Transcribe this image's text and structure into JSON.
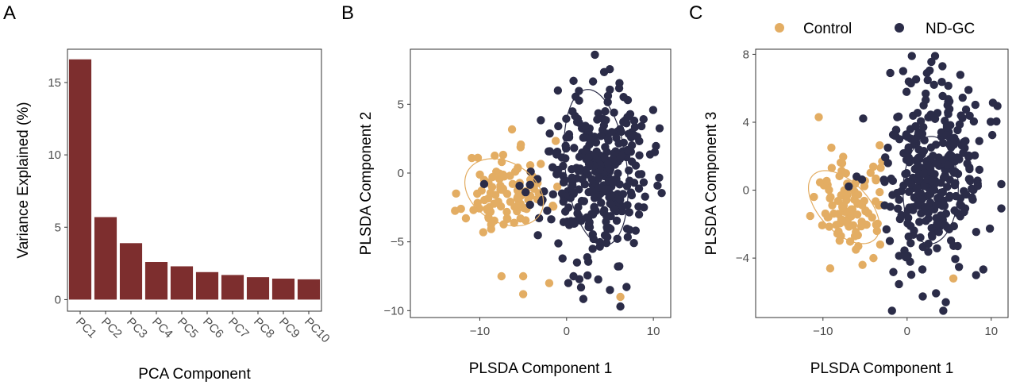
{
  "panel_labels": [
    "A",
    "B",
    "C"
  ],
  "legend": {
    "items": [
      {
        "label": "Control",
        "color": "#E3AD63"
      },
      {
        "label": "ND-GC",
        "color": "#2B2C48"
      }
    ]
  },
  "chart_data": [
    {
      "type": "bar",
      "panel": "A",
      "categories": [
        "PC1",
        "PC2",
        "PC3",
        "PC4",
        "PC5",
        "PC6",
        "PC7",
        "PC8",
        "PC9",
        "PC10"
      ],
      "values": [
        16.6,
        5.7,
        3.9,
        2.6,
        2.3,
        1.9,
        1.7,
        1.55,
        1.45,
        1.4
      ],
      "xlabel": "PCA Component",
      "ylabel": "Variance Explained (%)",
      "ylim": [
        -0.8,
        17.3
      ],
      "yticks": [
        0,
        5,
        10,
        15
      ],
      "bar_color": "#7D2E2E",
      "grid": false
    },
    {
      "type": "scatter",
      "panel": "B",
      "xlabel": "PLSDA Component 1",
      "ylabel": "PLSDA Component 2",
      "xlim": [
        -18,
        12
      ],
      "ylim": [
        -10.5,
        9
      ],
      "xticks": [
        -10,
        0,
        10
      ],
      "yticks": [
        -10,
        -5,
        0,
        5
      ],
      "grid": false,
      "series": [
        {
          "name": "Control",
          "color": "#E3AD63",
          "seed": 11,
          "n": 95,
          "cx": -6.8,
          "cy": -1.2,
          "sx": 2.4,
          "sy": 1.6,
          "rho": 0.1,
          "extra": [
            [
              -7.5,
              -7.5
            ],
            [
              -9.6,
              -4.3
            ],
            [
              -5,
              -7.5
            ],
            [
              -2,
              -8
            ],
            [
              -5,
              -8.8
            ],
            [
              6.2,
              -9
            ],
            [
              -9.5,
              -0.5
            ],
            [
              -10.3,
              -1.5
            ]
          ],
          "ellipse": {
            "cx": -7.2,
            "cy": -1.4,
            "rx": 9.2,
            "ry": 4.6,
            "angle": -12
          }
        },
        {
          "name": "ND-GC",
          "color": "#2B2C48",
          "seed": 23,
          "n": 335,
          "cx": 3.4,
          "cy": -0.2,
          "sx": 3.0,
          "sy": 3.0,
          "rho": 0.05,
          "extra": [
            [
              6.2,
              -9.7
            ],
            [
              5,
              -8.5
            ],
            [
              0.8,
              -7.5
            ],
            [
              -1,
              6
            ],
            [
              6.3,
              3
            ],
            [
              -9.5,
              -0.8
            ],
            [
              0.8,
              6.7
            ],
            [
              7.8,
              3.8
            ]
          ],
          "ellipse": {
            "cx": 3.4,
            "cy": 0.4,
            "rx": 7.0,
            "ry": 11.6,
            "angle": 15
          }
        }
      ]
    },
    {
      "type": "scatter",
      "panel": "C",
      "xlabel": "PLSDA Component 1",
      "ylabel": "PLSDA Component 3",
      "xlim": [
        -18,
        12
      ],
      "ylim": [
        -7.5,
        8.3
      ],
      "xticks": [
        -10,
        0,
        10
      ],
      "yticks": [
        -4,
        0,
        4,
        8
      ],
      "grid": false,
      "series": [
        {
          "name": "Control",
          "color": "#E3AD63",
          "seed": 31,
          "n": 95,
          "cx": -6.8,
          "cy": -1.0,
          "sx": 2.2,
          "sy": 1.4,
          "rho": 0.1,
          "extra": [
            [
              -10.5,
              4.3
            ],
            [
              -5.3,
              -4.4
            ],
            [
              -4,
              -4
            ],
            [
              5.5,
              -5.2
            ],
            [
              -9,
              2.5
            ],
            [
              -3.2,
              -3.2
            ]
          ],
          "ellipse": {
            "cx": -7.5,
            "cy": -1.0,
            "rx": 8.8,
            "ry": 3.5,
            "angle": -18
          }
        },
        {
          "name": "ND-GC",
          "color": "#2B2C48",
          "seed": 47,
          "n": 335,
          "cx": 3.0,
          "cy": 0.8,
          "sx": 3.0,
          "sy": 2.5,
          "rho": 0.05,
          "extra": [
            [
              4.2,
              7.3
            ],
            [
              -2,
              6.9
            ],
            [
              4.3,
              -7.1
            ],
            [
              8.2,
              -5
            ],
            [
              7.3,
              5.9
            ],
            [
              0.2,
              6.4
            ],
            [
              -6,
              0.8
            ],
            [
              4.6,
              -6.6
            ]
          ],
          "ellipse": {
            "cx": 2.8,
            "cy": 0.0,
            "rx": 6.6,
            "ry": 6.3,
            "angle": 18
          }
        }
      ]
    }
  ]
}
